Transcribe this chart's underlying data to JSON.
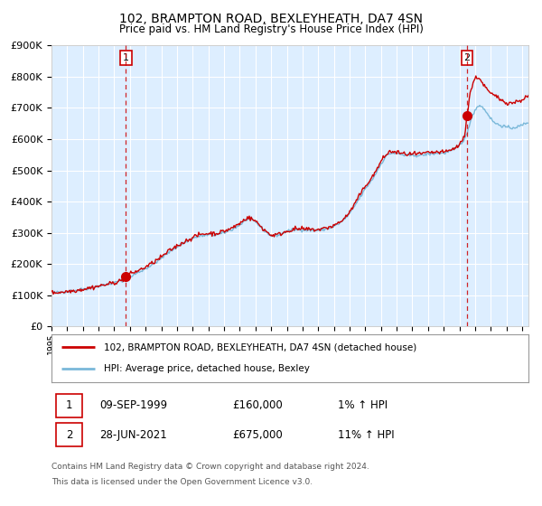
{
  "title": "102, BRAMPTON ROAD, BEXLEYHEATH, DA7 4SN",
  "subtitle": "Price paid vs. HM Land Registry's House Price Index (HPI)",
  "sale1_date": "09-SEP-1999",
  "sale1_price": 160000,
  "sale1_label": "1",
  "sale1_x": 1999.75,
  "sale2_date": "28-JUN-2021",
  "sale2_price": 675000,
  "sale2_label": "2",
  "sale2_x": 2021.49,
  "legend_line1": "102, BRAMPTON ROAD, BEXLEYHEATH, DA7 4SN (detached house)",
  "legend_line2": "HPI: Average price, detached house, Bexley",
  "hpi_color": "#7ab8d9",
  "sale_color": "#cc0000",
  "bg_color": "#ddeeff",
  "plot_bg": "#ddeeff",
  "grid_color": "#ffffff",
  "dashed_color": "#cc0000",
  "ylim": [
    0,
    900000
  ],
  "xlim_start": 1995.0,
  "xlim_end": 2025.4,
  "footnote1": "Contains HM Land Registry data © Crown copyright and database right 2024.",
  "footnote2": "This data is licensed under the Open Government Licence v3.0."
}
